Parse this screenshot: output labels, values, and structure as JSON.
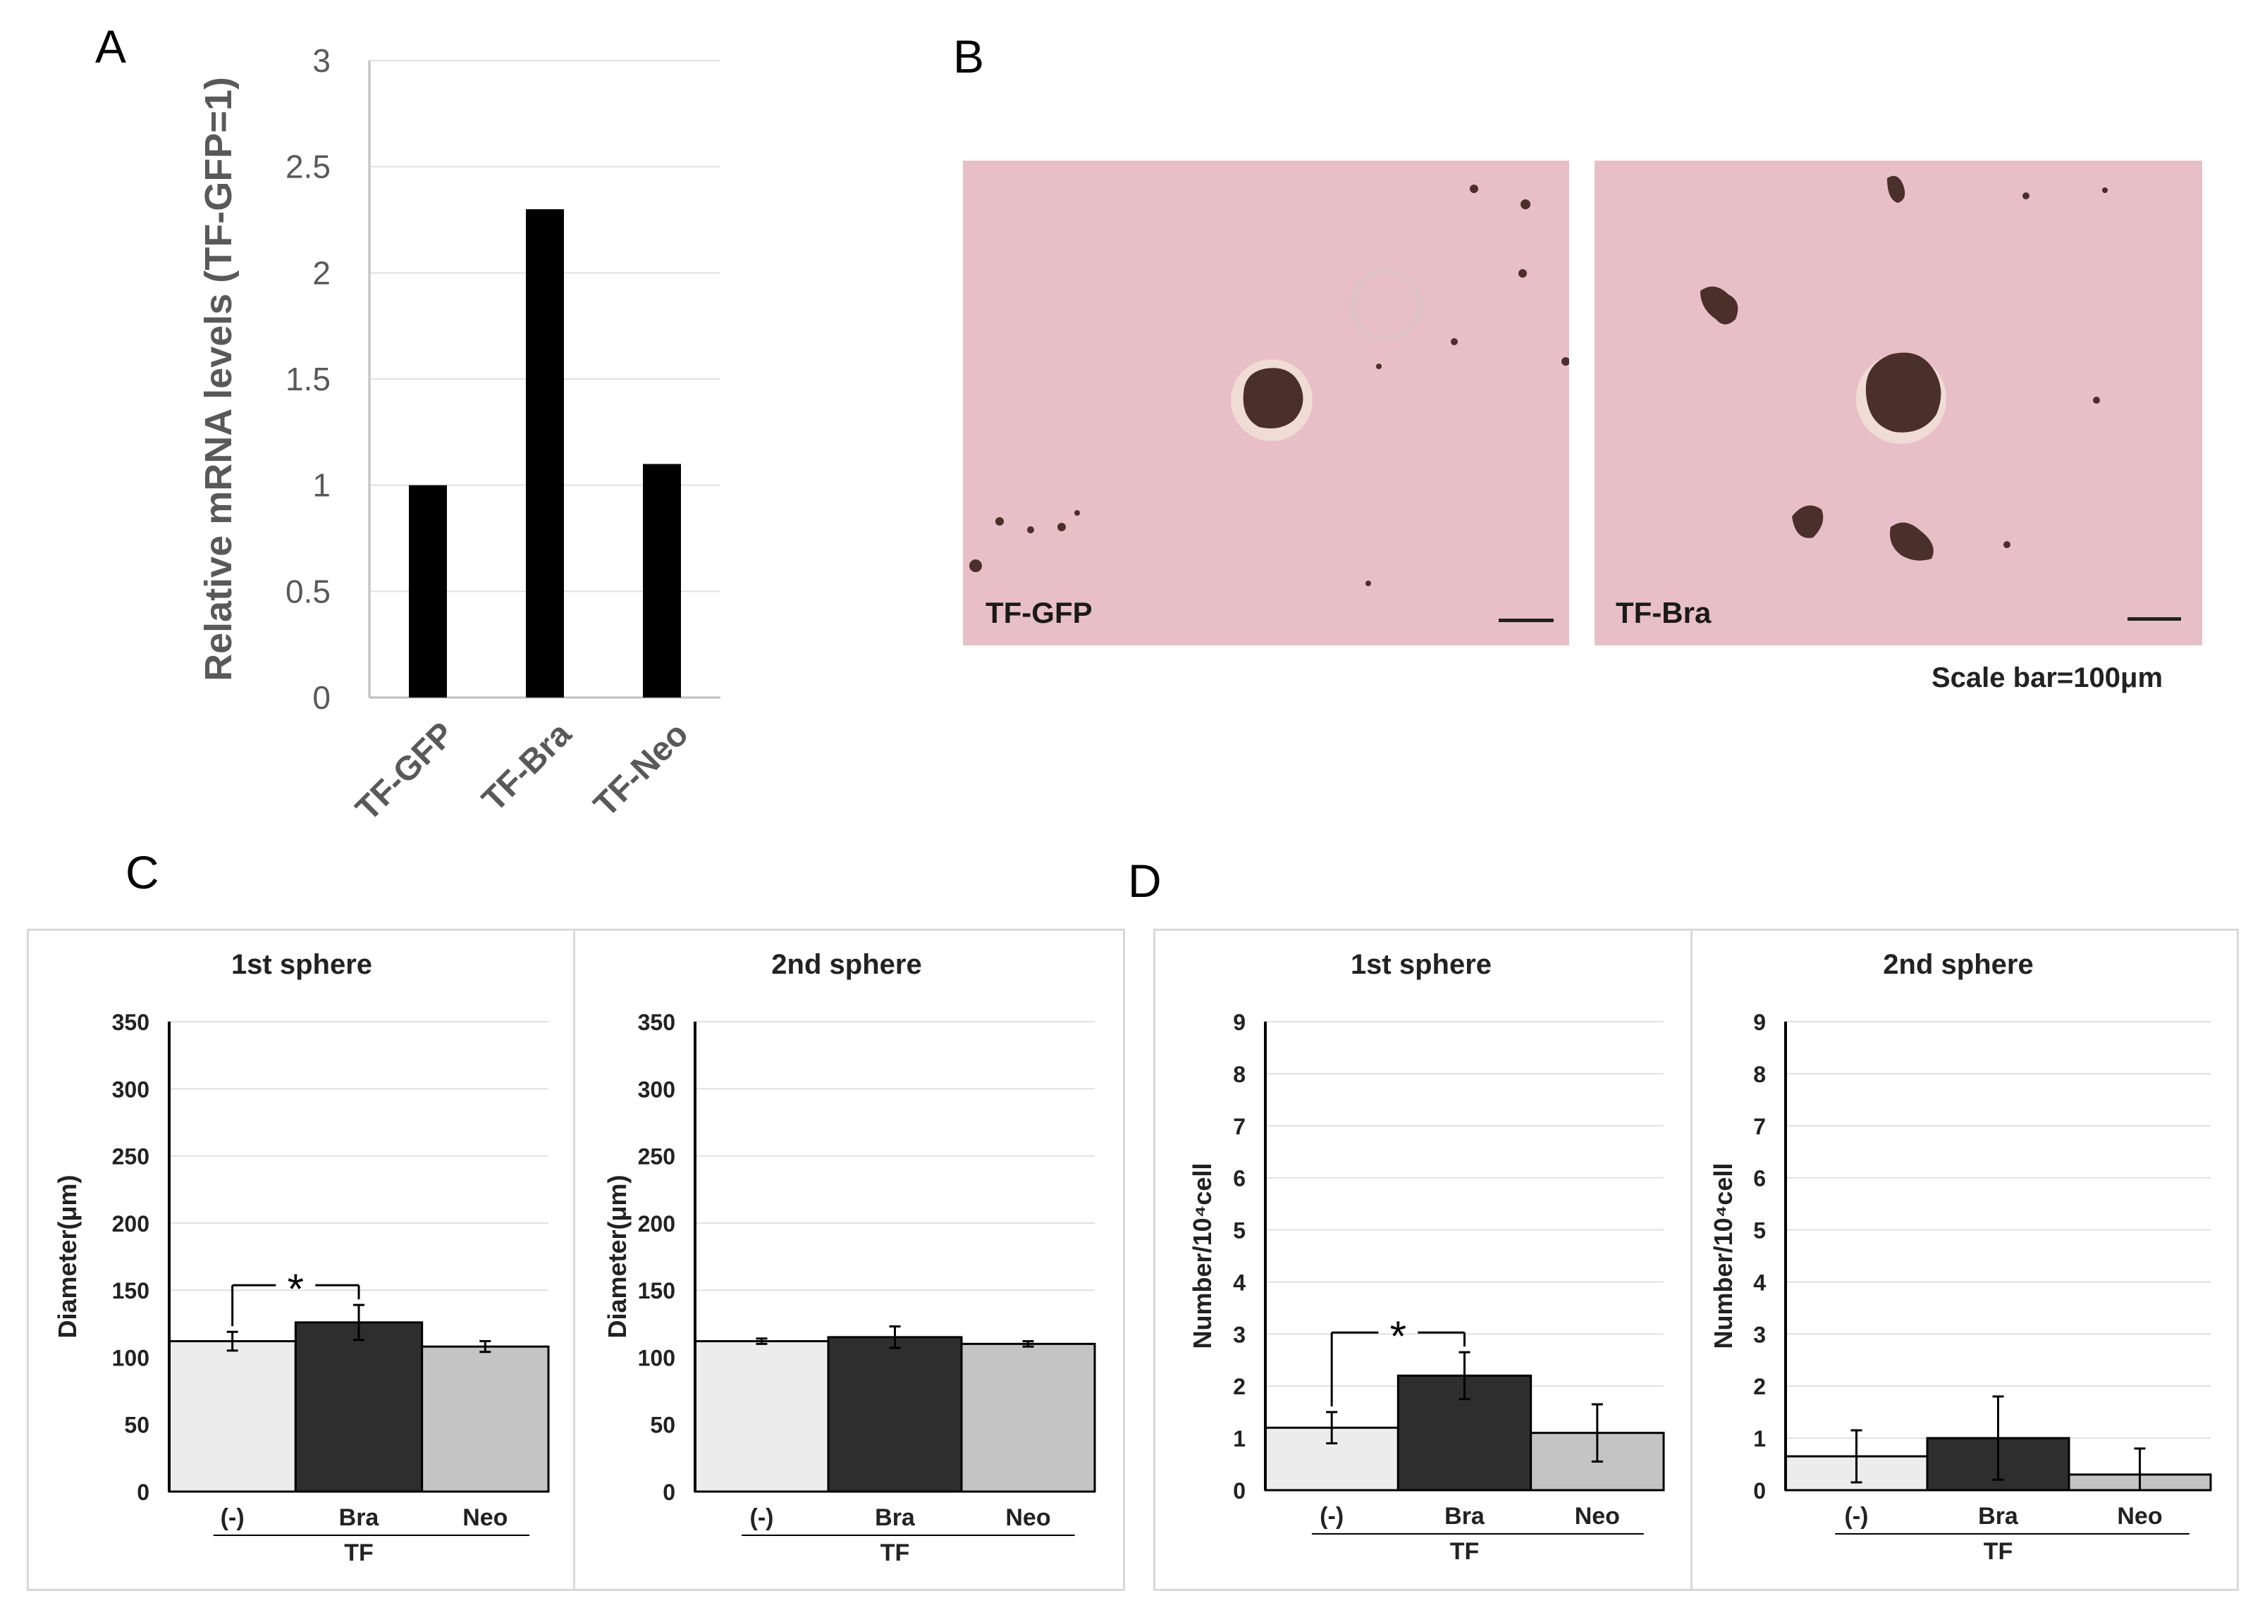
{
  "panels": {
    "a": "A",
    "b": "B",
    "c": "C",
    "d": "D"
  },
  "micrographs": {
    "left_label": "TF-GFP",
    "right_label": "TF-Bra",
    "scale_caption": "Scale bar=100μm",
    "background_color": "#e8bfc6",
    "cell_color": "#4a2f2a"
  },
  "colors": {
    "light": "#ececec",
    "dark": "#2e2e2e",
    "mid": "#c4c4c4",
    "black": "#000000",
    "grid": "#e0e0e0"
  },
  "chart_data": [
    {
      "type": "bar",
      "panel": "A",
      "categories": [
        "TF-GFP",
        "TF-Bra",
        "TF-Neo"
      ],
      "values": [
        1.0,
        2.3,
        1.1
      ],
      "ylabel": "Relative mRNA levels (TF-GFP=1)",
      "ylim": [
        0,
        3
      ],
      "yticks": [
        "0",
        "0.5",
        "1",
        "1.5",
        "2",
        "2.5",
        "3"
      ],
      "grid": true
    },
    {
      "type": "bar",
      "panel": "C",
      "title": "1st sphere",
      "categories": [
        "(-)",
        "Bra",
        "Neo"
      ],
      "values": [
        112,
        126,
        108
      ],
      "errors": [
        7,
        13,
        4
      ],
      "xlabel": "TF",
      "ylabel": "Diameter(μm)",
      "ylim": [
        0,
        350
      ],
      "yticks": [
        "0",
        "50",
        "100",
        "150",
        "200",
        "250",
        "300",
        "350"
      ],
      "significance": {
        "from": 0,
        "to": 1,
        "label": "*"
      }
    },
    {
      "type": "bar",
      "panel": "C",
      "title": "2nd sphere",
      "categories": [
        "(-)",
        "Bra",
        "Neo"
      ],
      "values": [
        112,
        115,
        110
      ],
      "errors": [
        2,
        8,
        2
      ],
      "xlabel": "TF",
      "ylabel": "Diameter(μm)",
      "ylim": [
        0,
        350
      ],
      "yticks": [
        "0",
        "50",
        "100",
        "150",
        "200",
        "250",
        "300",
        "350"
      ]
    },
    {
      "type": "bar",
      "panel": "D",
      "title": "1st sphere",
      "categories": [
        "(-)",
        "Bra",
        "Neo"
      ],
      "values": [
        1.2,
        2.2,
        1.1
      ],
      "errors": [
        0.3,
        0.45,
        0.55
      ],
      "xlabel": "TF",
      "ylabel": "Number/10⁴cell",
      "ylim": [
        0,
        9
      ],
      "yticks": [
        "0",
        "1",
        "2",
        "3",
        "4",
        "5",
        "6",
        "7",
        "8",
        "9"
      ],
      "significance": {
        "from": 0,
        "to": 1,
        "label": "*"
      }
    },
    {
      "type": "bar",
      "panel": "D",
      "title": "2nd sphere",
      "categories": [
        "(-)",
        "Bra",
        "Neo"
      ],
      "values": [
        0.65,
        1.0,
        0.3
      ],
      "errors": [
        0.5,
        0.8,
        0.5
      ],
      "xlabel": "TF",
      "ylabel": "Number/10⁴cell",
      "ylim": [
        0,
        9
      ],
      "yticks": [
        "0",
        "1",
        "2",
        "3",
        "4",
        "5",
        "6",
        "7",
        "8",
        "9"
      ]
    }
  ]
}
